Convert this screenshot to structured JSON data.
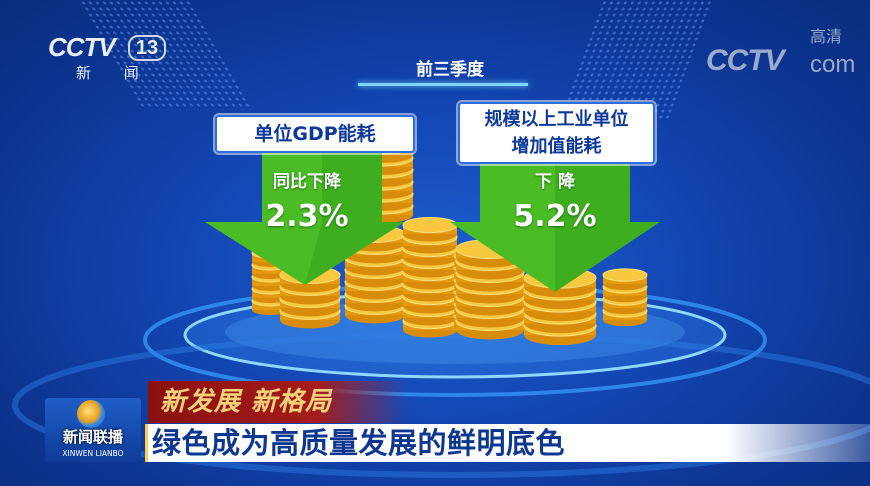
{
  "channel_logo": {
    "brand": "CCTV",
    "number": "13",
    "name": "新 闻"
  },
  "watermark": {
    "brand": "CCTV",
    "suffix": "com",
    "hd": "高清"
  },
  "period": "前三季度",
  "indicators": [
    {
      "title": "单位GDP能耗",
      "change_label": "同比下降",
      "value": "2.3%"
    },
    {
      "title_line1": "规模以上工业单位",
      "title_line2": "增加值能耗",
      "change_label": "下 降",
      "value": "5.2%"
    }
  ],
  "colors": {
    "arrow": "#3fae1e",
    "coin": "#f2b51c",
    "headline": "#0d3790",
    "banner_red": "#a51c1c"
  },
  "program_logo": {
    "name": "新闻联播",
    "pinyin": "XINWEN  LIANBO"
  },
  "banner": {
    "series": "新发展 新格局",
    "headline": "绿色成为高质量发展的鲜明底色"
  }
}
